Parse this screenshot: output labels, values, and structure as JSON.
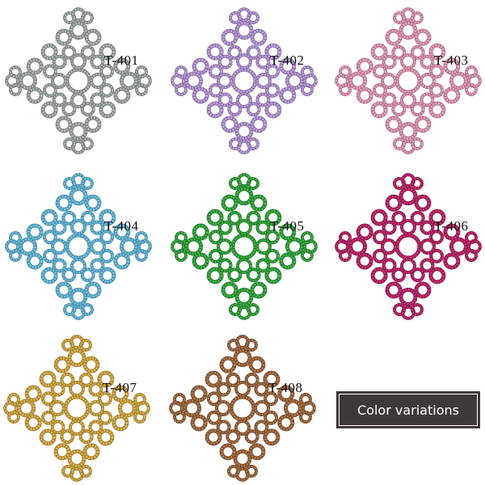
{
  "badge": {
    "label": "Color variations"
  },
  "items": [
    {
      "code": "T-401",
      "color": "#b4b8b9",
      "shade": "#7d8385"
    },
    {
      "code": "T-402",
      "color": "#c3a6dc",
      "shade": "#8e73ad"
    },
    {
      "code": "T-403",
      "color": "#e3a6bd",
      "shade": "#b87591"
    },
    {
      "code": "T-404",
      "color": "#78c1dc",
      "shade": "#4a93b2"
    },
    {
      "code": "T-405",
      "color": "#45b54d",
      "shade": "#23802c"
    },
    {
      "code": "T-406",
      "color": "#cf2f78",
      "shade": "#8f1a4f"
    },
    {
      "code": "T-407",
      "color": "#dcb65a",
      "shade": "#a8832e"
    },
    {
      "code": "T-408",
      "color": "#b27a4e",
      "shade": "#7a4e2d"
    }
  ]
}
